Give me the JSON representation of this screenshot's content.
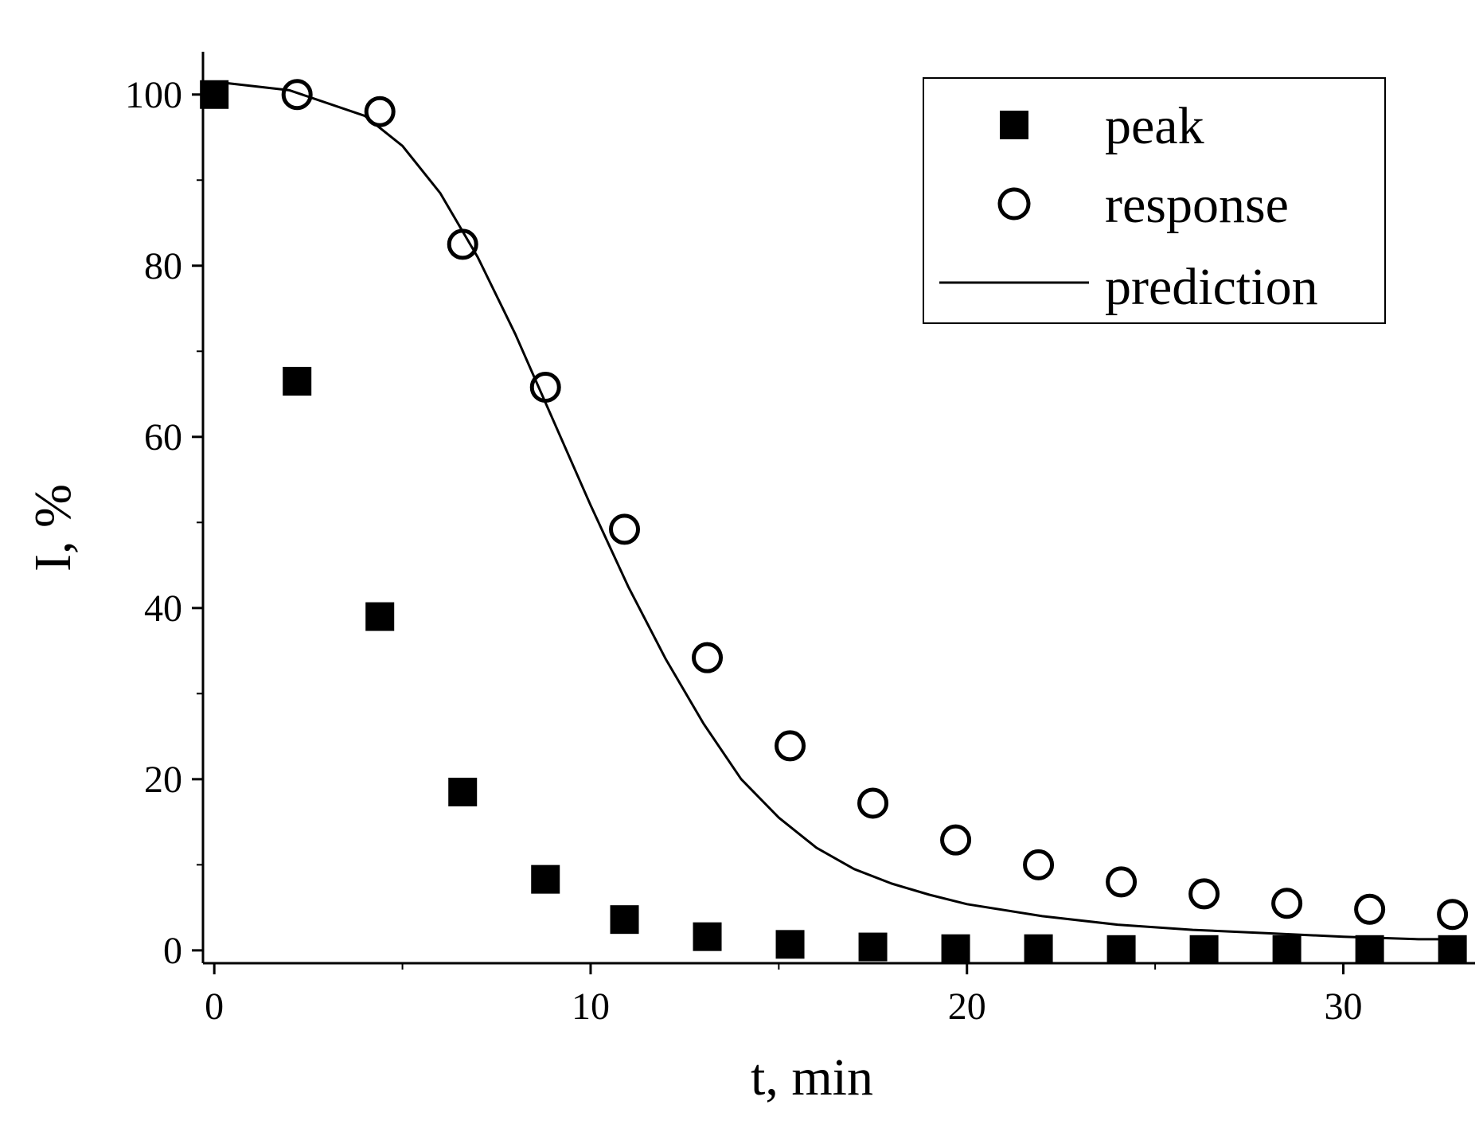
{
  "chart_data": {
    "type": "scatter",
    "title": "",
    "xlabel": "t, min",
    "ylabel": "I, %",
    "xlim": [
      -0.3,
      33.5
    ],
    "ylim": [
      -1.5,
      105
    ],
    "x_ticks": [
      0,
      10,
      20,
      30
    ],
    "y_ticks": [
      0,
      20,
      40,
      60,
      80,
      100
    ],
    "x_minor_ticks": [
      5,
      15,
      25
    ],
    "y_minor_ticks": [
      10,
      30,
      50,
      70,
      90
    ],
    "grid": false,
    "legend_position": "top-right",
    "series": [
      {
        "name": "peak",
        "marker": "filled-square",
        "color": "#000000",
        "x": [
          0,
          2.2,
          4.4,
          6.6,
          8.8,
          10.9,
          13.1,
          15.3,
          17.5,
          19.7,
          21.9,
          24.1,
          26.3,
          28.5,
          30.7,
          32.9
        ],
        "y": [
          100,
          66.5,
          39,
          18.5,
          8.3,
          3.6,
          1.6,
          0.7,
          0.4,
          0.2,
          0.2,
          0.1,
          0.1,
          0.1,
          0.1,
          0.1
        ]
      },
      {
        "name": "response",
        "marker": "open-circle",
        "color": "#000000",
        "x": [
          2.2,
          4.4,
          6.6,
          8.8,
          10.9,
          13.1,
          15.3,
          17.5,
          19.7,
          21.9,
          24.1,
          26.3,
          28.5,
          30.7,
          32.9
        ],
        "y": [
          100,
          98,
          82.5,
          65.8,
          49.2,
          34.2,
          23.9,
          17.2,
          12.9,
          10,
          8,
          6.6,
          5.5,
          4.8,
          4.2
        ]
      },
      {
        "name": "prediction",
        "marker": "line",
        "color": "#000000",
        "x": [
          0,
          2,
          4,
          5,
          6,
          7,
          8,
          9,
          10,
          11,
          12,
          13,
          14,
          15,
          16,
          17,
          18,
          19,
          20,
          22,
          24,
          26,
          28,
          30,
          32,
          33
        ],
        "y": [
          101.5,
          100.5,
          97.5,
          94,
          88.5,
          81,
          72,
          62,
          52,
          42.5,
          34,
          26.5,
          20,
          15.5,
          12,
          9.5,
          7.8,
          6.5,
          5.4,
          4,
          3,
          2.4,
          2,
          1.6,
          1.3,
          1.3
        ]
      }
    ]
  }
}
